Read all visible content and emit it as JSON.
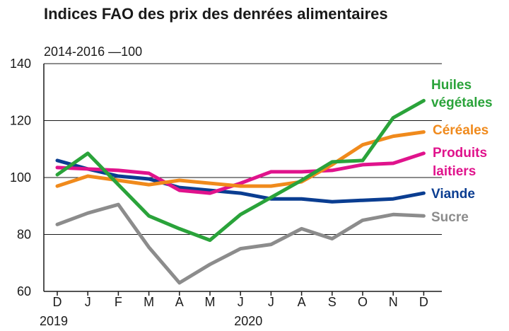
{
  "chart_data": {
    "type": "line",
    "title": "Indices FAO des prix des denrées alimentaires",
    "subtitle": "2014-2016 —100",
    "categories": [
      "D",
      "J",
      "F",
      "M",
      "A",
      "M",
      "J",
      "J",
      "A",
      "S",
      "O",
      "N",
      "D"
    ],
    "year_labels": [
      {
        "label": "2019",
        "category_index": 0
      },
      {
        "label": "2020",
        "category_index": 6
      }
    ],
    "ylim": [
      60,
      140
    ],
    "yticks": [
      60,
      80,
      100,
      120,
      140
    ],
    "grid": true,
    "series": [
      {
        "name": "Sucre",
        "label_lines": [
          "Sucre"
        ],
        "color": "#8c8c8c",
        "values": [
          83.5,
          87.5,
          90.5,
          75.5,
          63.0,
          69.5,
          75.0,
          76.5,
          82.0,
          78.5,
          85.0,
          87.0,
          86.5
        ]
      },
      {
        "name": "Viande",
        "label_lines": [
          "Viande"
        ],
        "color": "#0a3d91",
        "values": [
          106.0,
          103.0,
          100.5,
          99.5,
          96.5,
          95.5,
          94.5,
          92.5,
          92.5,
          91.5,
          92.0,
          92.5,
          94.5
        ]
      },
      {
        "name": "Produits laitiers",
        "label_lines": [
          "Produits",
          "laitiers"
        ],
        "color": "#e0138c",
        "values": [
          103.5,
          103.0,
          102.5,
          101.5,
          95.5,
          94.5,
          98.0,
          102.0,
          102.0,
          102.5,
          104.5,
          105.0,
          108.5
        ]
      },
      {
        "name": "Céréales",
        "label_lines": [
          "Céréales"
        ],
        "color": "#f08a1c",
        "values": [
          97.0,
          100.5,
          99.0,
          97.5,
          99.0,
          98.0,
          97.0,
          97.0,
          98.5,
          104.5,
          111.5,
          114.5,
          116.0
        ]
      },
      {
        "name": "Huiles végétales",
        "label_lines": [
          "Huiles",
          "végétales"
        ],
        "color": "#2aa33a",
        "values": [
          101.0,
          108.5,
          97.5,
          86.5,
          82.0,
          78.0,
          87.0,
          93.0,
          99.0,
          105.5,
          106.0,
          121.0,
          127.0
        ]
      }
    ]
  }
}
